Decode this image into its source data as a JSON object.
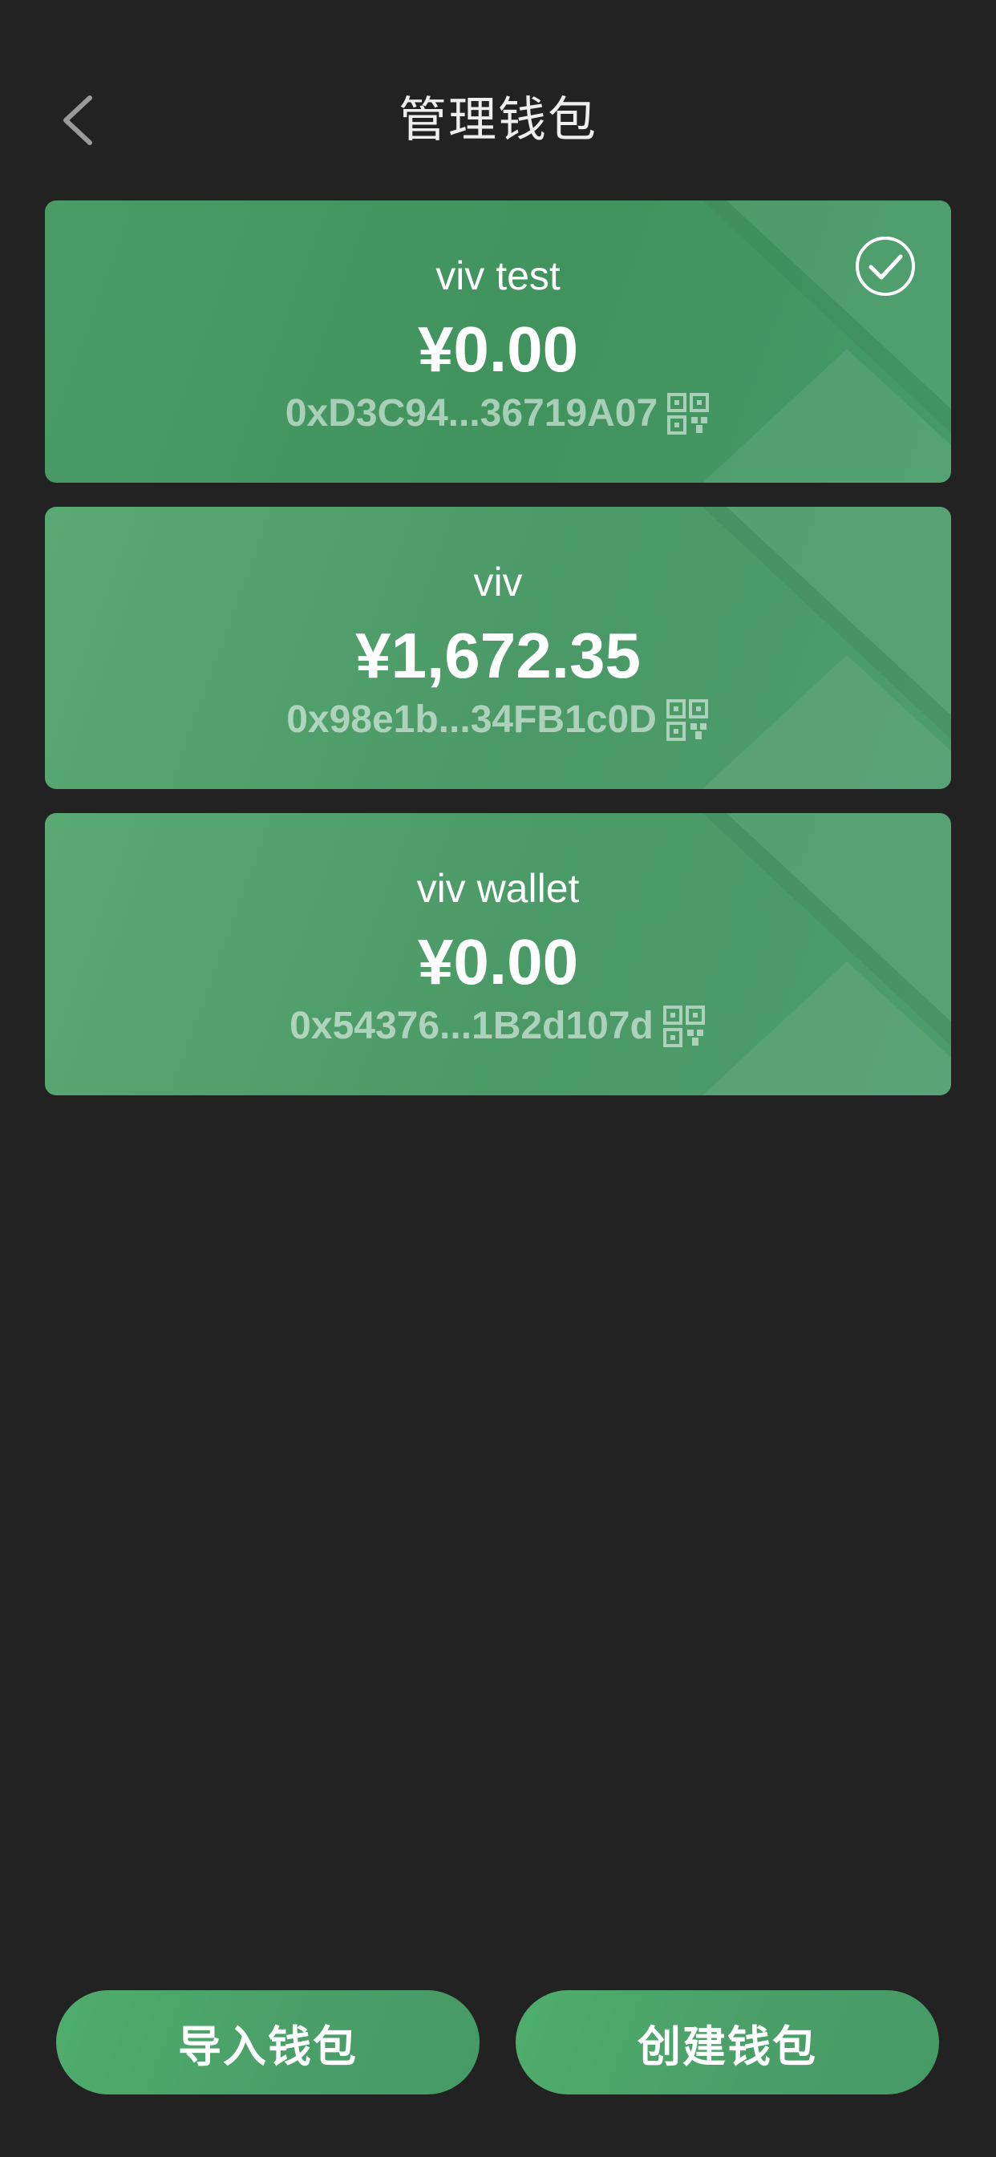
{
  "header": {
    "title": "管理钱包",
    "back_icon": "chevron-left-icon"
  },
  "wallets": [
    {
      "name": "viv test",
      "balance": "¥0.00",
      "address": "0xD3C94...36719A07",
      "selected": true
    },
    {
      "name": "viv",
      "balance": "¥1,672.35",
      "address": "0x98e1b...34FB1c0D",
      "selected": false
    },
    {
      "name": "viv wallet",
      "balance": "¥0.00",
      "address": "0x54376...1B2d107d",
      "selected": false
    }
  ],
  "actions": {
    "import_label": "导入钱包",
    "create_label": "创建钱包"
  },
  "colors": {
    "background": "#222222",
    "card_green": "#4a9966",
    "button_green": "#4fad6c"
  }
}
